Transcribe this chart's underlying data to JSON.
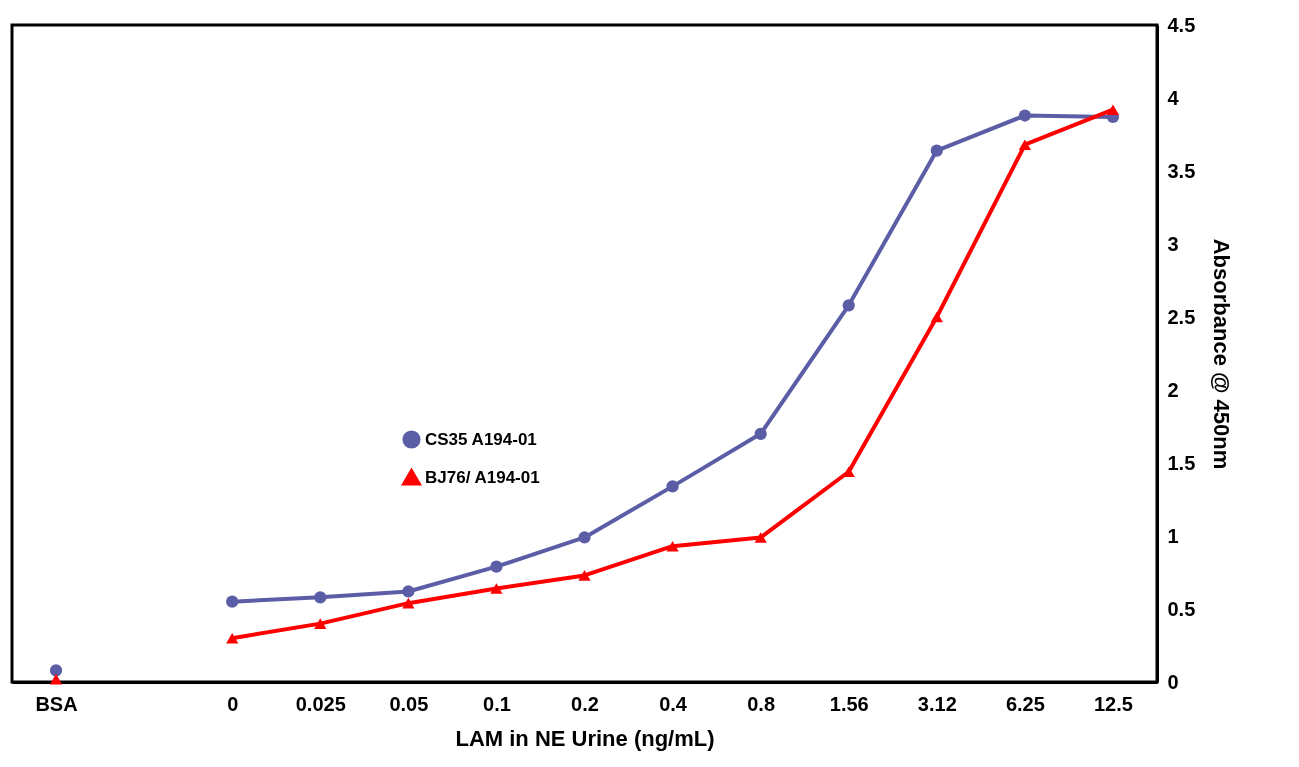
{
  "chart_data": {
    "type": "line",
    "xlabel": "LAM in NE Urine (ng/mL)",
    "ylabel": "Absorbance @ 450nm",
    "categories": [
      "BSA",
      null,
      "0",
      "0.025",
      "0.05",
      "0.1",
      "0.2",
      "0.4",
      "0.8",
      "1.56",
      "3.12",
      "6.25",
      "12.5"
    ],
    "series": [
      {
        "name": "CS35  A194-01",
        "color": "#5b5ea6",
        "marker": "circle",
        "values": [
          0.08,
          null,
          0.55,
          0.58,
          0.62,
          0.79,
          0.99,
          1.34,
          1.7,
          2.58,
          3.64,
          3.88,
          3.87
        ]
      },
      {
        "name": "BJ76/ A194-01",
        "color": "#ff0000",
        "marker": "triangle",
        "values": [
          0.02,
          null,
          0.3,
          0.4,
          0.54,
          0.64,
          0.73,
          0.93,
          0.99,
          1.44,
          2.5,
          3.68,
          3.92
        ]
      }
    ],
    "ylim": [
      0,
      4.5
    ],
    "yticks": [
      0,
      0.5,
      1,
      1.5,
      2,
      2.5,
      3,
      3.5,
      4,
      4.5
    ],
    "grid": false,
    "legend": "center",
    "line_style": "solid"
  }
}
